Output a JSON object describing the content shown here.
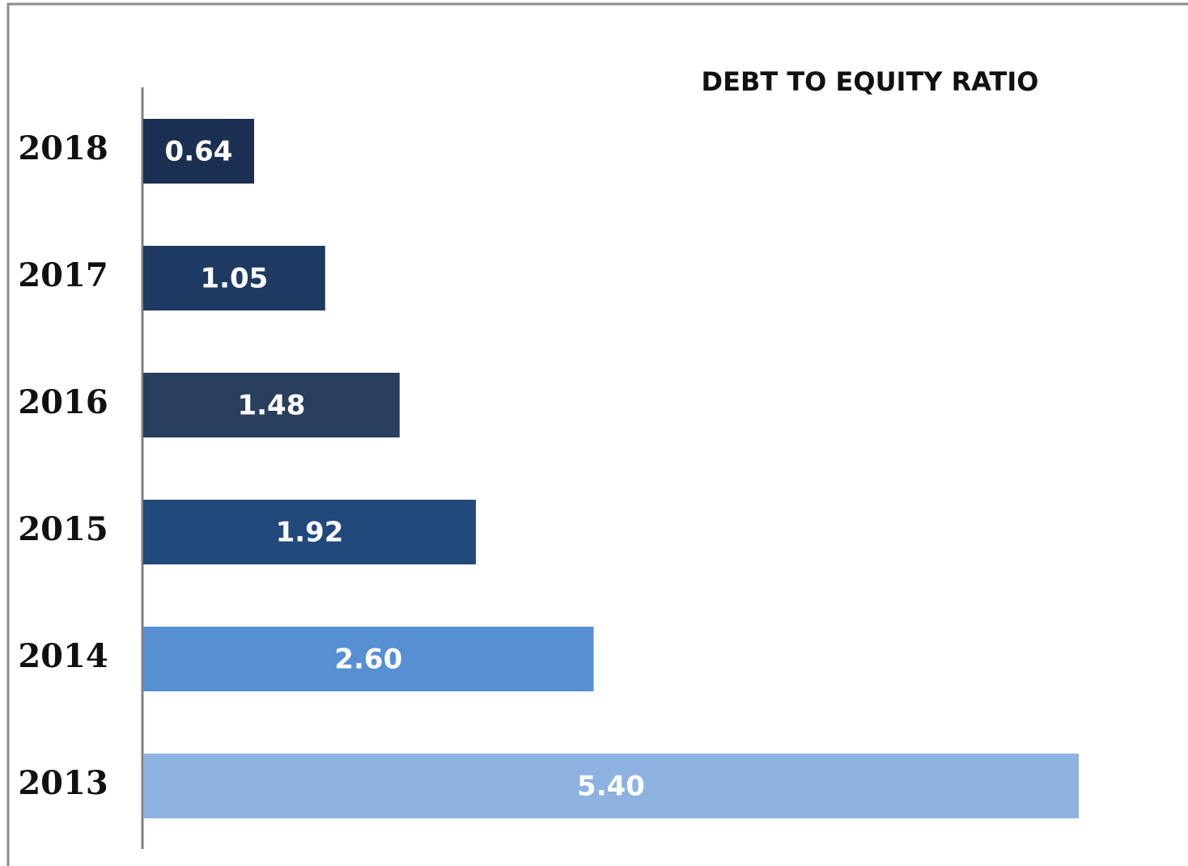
{
  "chart_data": {
    "type": "bar",
    "orientation": "horizontal",
    "title": "DEBT  TO EQUITY  RATIO",
    "categories": [
      "2018",
      "2017",
      "2016",
      "2015",
      "2014",
      "2013"
    ],
    "values": [
      0.64,
      1.05,
      1.48,
      1.92,
      2.6,
      5.4
    ],
    "value_labels": [
      "0.64",
      "1.05",
      "1.48",
      "1.92",
      "2.60",
      "5.40"
    ],
    "colors": [
      "#1a2f52",
      "#1e3a63",
      "#283f5e",
      "#21497c",
      "#578fd3",
      "#8db2e0"
    ]
  }
}
